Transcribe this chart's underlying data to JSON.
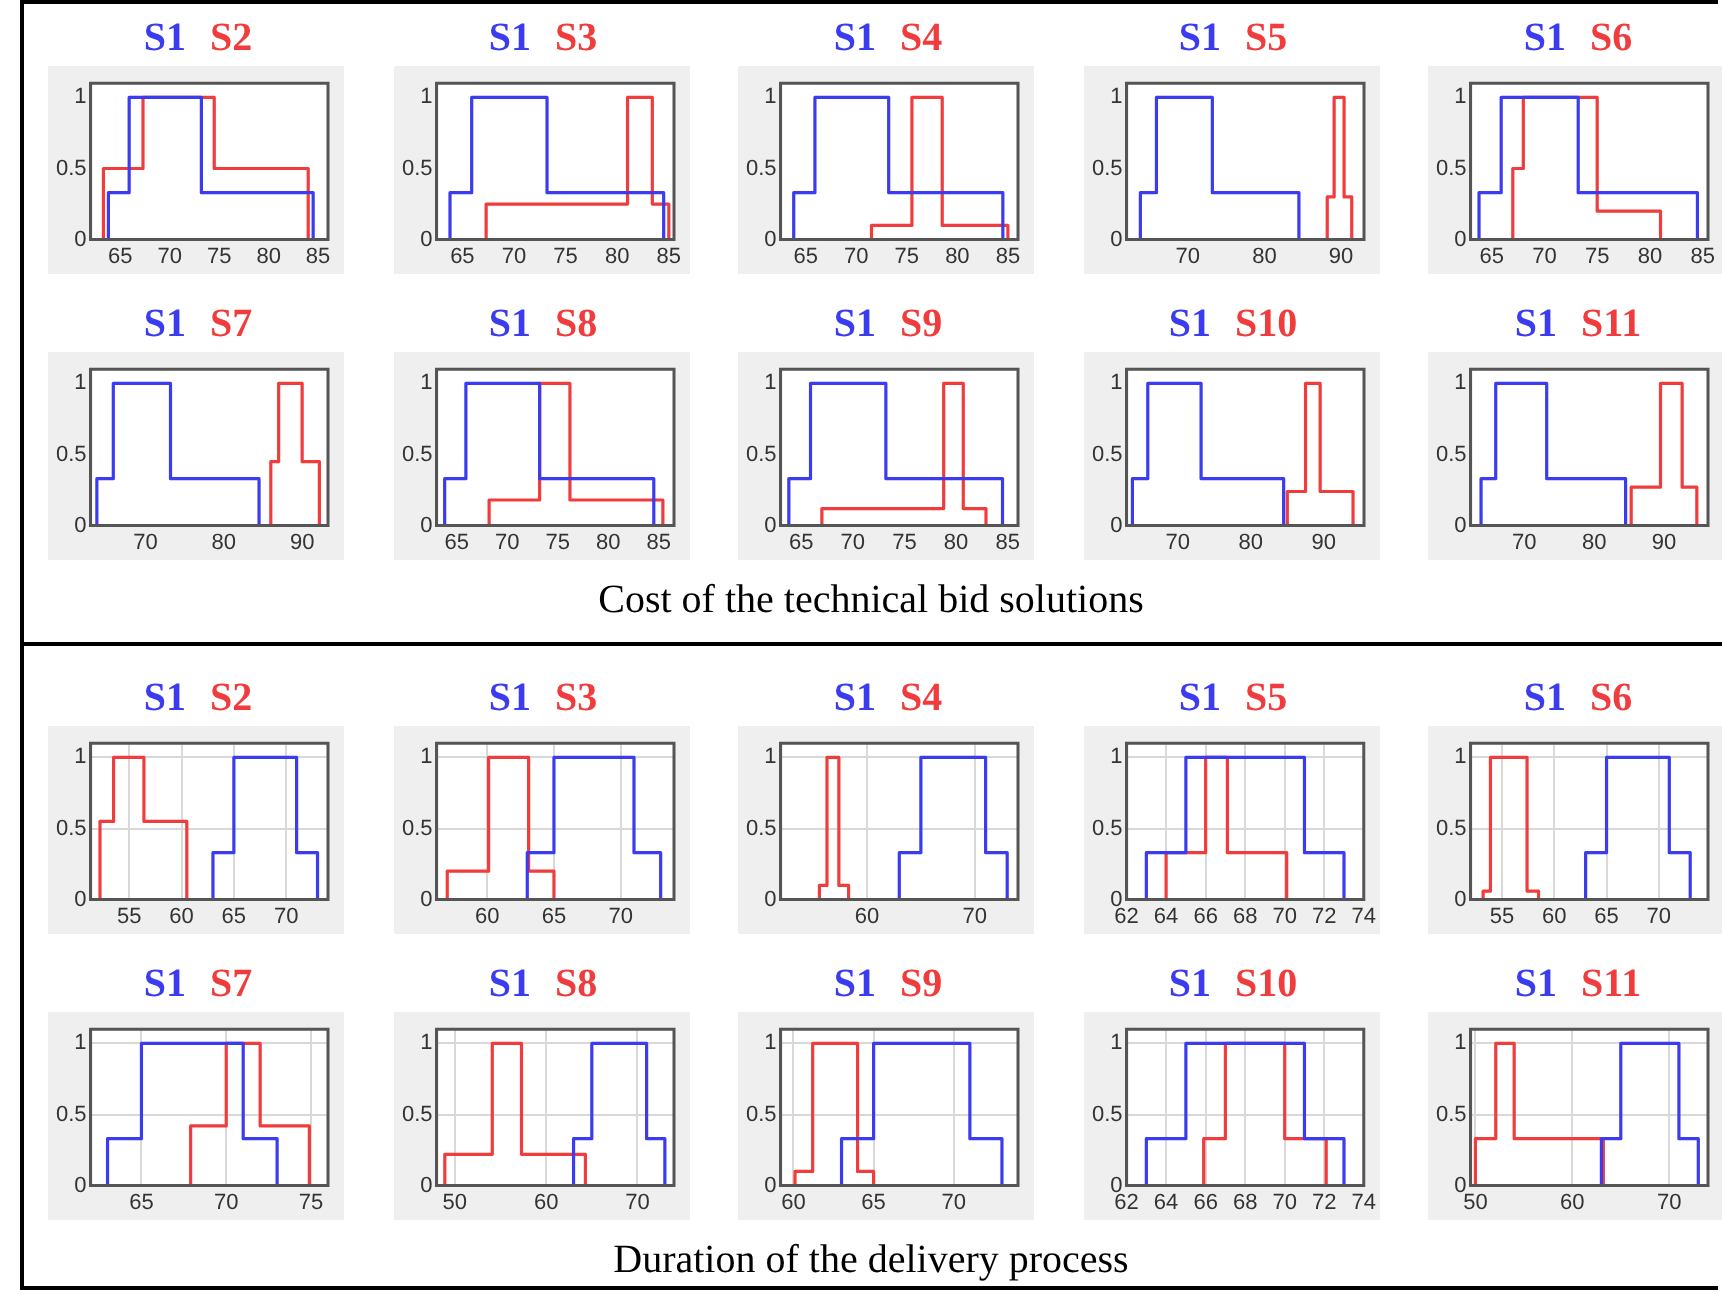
{
  "chart_data": [
    {
      "type": "line",
      "legend": "top",
      "grid": false,
      "xlim": [
        62,
        86
      ],
      "xticks": [
        65,
        70,
        75,
        80,
        85
      ],
      "ylim": [
        0,
        1.1
      ],
      "yticks": [
        0,
        0.5,
        1
      ],
      "series": [
        {
          "name": "S1",
          "color": "#3b3bf0",
          "x": [
            63.8,
            63.8,
            65.9,
            65.9,
            73.2,
            73.2,
            84.5,
            84.5
          ],
          "values": [
            0,
            0.33,
            0.33,
            1,
            1,
            0.33,
            0.33,
            0
          ]
        },
        {
          "name": "S2",
          "color": "#f03c3c",
          "x": [
            63.3,
            63.3,
            67.3,
            67.3,
            74.5,
            74.5,
            84,
            84
          ],
          "values": [
            0,
            0.5,
            0.5,
            1,
            1,
            0.5,
            0.5,
            0
          ]
        }
      ]
    },
    {
      "type": "line",
      "legend": "top",
      "grid": false,
      "xlim": [
        62.5,
        85.5
      ],
      "xticks": [
        65,
        70,
        75,
        80,
        85
      ],
      "ylim": [
        0,
        1.1
      ],
      "yticks": [
        0,
        0.5,
        1
      ],
      "series": [
        {
          "name": "S1",
          "color": "#3b3bf0",
          "x": [
            63.8,
            63.8,
            65.9,
            65.9,
            73.2,
            73.2,
            84.5,
            84.5
          ],
          "values": [
            0,
            0.33,
            0.33,
            1,
            1,
            0.33,
            0.33,
            0
          ]
        },
        {
          "name": "S3",
          "color": "#f03c3c",
          "x": [
            67.3,
            67.3,
            81,
            81,
            83.4,
            83.4,
            85,
            85
          ],
          "values": [
            0,
            0.25,
            0.25,
            1,
            1,
            0.25,
            0.25,
            0
          ]
        }
      ]
    },
    {
      "type": "line",
      "legend": "top",
      "grid": false,
      "xlim": [
        62.5,
        86
      ],
      "xticks": [
        65,
        70,
        75,
        80,
        85
      ],
      "ylim": [
        0,
        1.1
      ],
      "yticks": [
        0,
        0.5,
        1
      ],
      "series": [
        {
          "name": "S1",
          "color": "#3b3bf0",
          "x": [
            63.8,
            63.8,
            65.9,
            65.9,
            73.2,
            73.2,
            84.5,
            84.5
          ],
          "values": [
            0,
            0.33,
            0.33,
            1,
            1,
            0.33,
            0.33,
            0
          ]
        },
        {
          "name": "S4",
          "color": "#f03c3c",
          "x": [
            71.5,
            71.5,
            75.5,
            75.5,
            78.5,
            78.5,
            85,
            85
          ],
          "values": [
            0,
            0.1,
            0.1,
            1,
            1,
            0.1,
            0.1,
            0
          ]
        }
      ]
    },
    {
      "type": "line",
      "legend": "top",
      "grid": false,
      "xlim": [
        62,
        93
      ],
      "xticks": [
        70,
        80,
        90
      ],
      "ylim": [
        0,
        1.1
      ],
      "yticks": [
        0,
        0.5,
        1
      ],
      "series": [
        {
          "name": "S1",
          "color": "#3b3bf0",
          "x": [
            63.8,
            63.8,
            65.9,
            65.9,
            73.2,
            73.2,
            84.5,
            84.5
          ],
          "values": [
            0,
            0.33,
            0.33,
            1,
            1,
            0.33,
            0.33,
            0
          ]
        },
        {
          "name": "S5",
          "color": "#f03c3c",
          "x": [
            88.2,
            88.2,
            89.1,
            89.1,
            90.4,
            90.4,
            91.4,
            91.4
          ],
          "values": [
            0,
            0.3,
            0.3,
            1,
            1,
            0.3,
            0.3,
            0
          ]
        }
      ]
    },
    {
      "type": "line",
      "legend": "top",
      "grid": false,
      "xlim": [
        63,
        85.5
      ],
      "xticks": [
        65,
        70,
        75,
        80,
        85
      ],
      "ylim": [
        0,
        1.1
      ],
      "yticks": [
        0,
        0.5,
        1
      ],
      "series": [
        {
          "name": "S1",
          "color": "#3b3bf0",
          "x": [
            63.8,
            63.8,
            65.9,
            65.9,
            73.2,
            73.2,
            84.5,
            84.5
          ],
          "values": [
            0,
            0.33,
            0.33,
            1,
            1,
            0.33,
            0.33,
            0
          ]
        },
        {
          "name": "S6",
          "color": "#f03c3c",
          "x": [
            67,
            67,
            68,
            68,
            75,
            75,
            81,
            81
          ],
          "values": [
            0,
            0.5,
            0.5,
            1,
            1,
            0.2,
            0.2,
            0
          ]
        }
      ]
    },
    {
      "type": "line",
      "legend": "top",
      "grid": false,
      "xlim": [
        63,
        93.3
      ],
      "xticks": [
        70,
        80,
        90
      ],
      "ylim": [
        0,
        1.1
      ],
      "yticks": [
        0,
        0.5,
        1
      ],
      "annotations": [
        "Cost of the technical bid solutions"
      ],
      "series": [
        {
          "name": "S1",
          "color": "#3b3bf0",
          "x": [
            63.8,
            63.8,
            65.9,
            65.9,
            73.2,
            73.2,
            84.5,
            84.5
          ],
          "values": [
            0,
            0.33,
            0.33,
            1,
            1,
            0.33,
            0.33,
            0
          ]
        },
        {
          "name": "S7",
          "color": "#f03c3c",
          "x": [
            86,
            86,
            87,
            87,
            90,
            90,
            92.2,
            92.2
          ],
          "values": [
            0,
            0.45,
            0.45,
            1,
            1,
            0.45,
            0.45,
            0
          ]
        }
      ]
    },
    {
      "type": "line",
      "legend": "top",
      "grid": false,
      "xlim": [
        63,
        86.5
      ],
      "xticks": [
        65,
        70,
        75,
        80,
        85
      ],
      "ylim": [
        0,
        1.1
      ],
      "yticks": [
        0,
        0.5,
        1
      ],
      "series": [
        {
          "name": "S1",
          "color": "#3b3bf0",
          "x": [
            63.8,
            63.8,
            65.9,
            65.9,
            73.2,
            73.2,
            84.5,
            84.5
          ],
          "values": [
            0,
            0.33,
            0.33,
            1,
            1,
            0.33,
            0.33,
            0
          ]
        },
        {
          "name": "S8",
          "color": "#f03c3c",
          "x": [
            68.2,
            68.2,
            73.2,
            73.2,
            76.2,
            76.2,
            85.4,
            85.4
          ],
          "values": [
            0,
            0.18,
            0.18,
            1,
            1,
            0.18,
            0.18,
            0
          ]
        }
      ]
    },
    {
      "type": "line",
      "legend": "top",
      "grid": false,
      "xlim": [
        63,
        86
      ],
      "xticks": [
        65,
        70,
        75,
        80,
        85
      ],
      "ylim": [
        0,
        1.1
      ],
      "yticks": [
        0,
        0.5,
        1
      ],
      "series": [
        {
          "name": "S1",
          "color": "#3b3bf0",
          "x": [
            63.8,
            63.8,
            65.9,
            65.9,
            73.2,
            73.2,
            84.5,
            84.5
          ],
          "values": [
            0,
            0.33,
            0.33,
            1,
            1,
            0.33,
            0.33,
            0
          ]
        },
        {
          "name": "S9",
          "color": "#f03c3c",
          "x": [
            67,
            67,
            78.8,
            78.8,
            80.7,
            80.7,
            82.9,
            82.9
          ],
          "values": [
            0,
            0.12,
            0.12,
            1,
            1,
            0.12,
            0.12,
            0
          ]
        }
      ]
    },
    {
      "type": "line",
      "legend": "top",
      "grid": false,
      "xlim": [
        63,
        95.5
      ],
      "xticks": [
        70,
        80,
        90
      ],
      "ylim": [
        0,
        1.1
      ],
      "yticks": [
        0,
        0.5,
        1
      ],
      "series": [
        {
          "name": "S1",
          "color": "#3b3bf0",
          "x": [
            63.8,
            63.8,
            65.9,
            65.9,
            73.2,
            73.2,
            84.5,
            84.5
          ],
          "values": [
            0,
            0.33,
            0.33,
            1,
            1,
            0.33,
            0.33,
            0
          ]
        },
        {
          "name": "S10",
          "color": "#f03c3c",
          "x": [
            85,
            85,
            87.5,
            87.5,
            89.5,
            89.5,
            94,
            94
          ],
          "values": [
            0,
            0.24,
            0.24,
            1,
            1,
            0.24,
            0.24,
            0
          ]
        }
      ]
    },
    {
      "type": "line",
      "legend": "top",
      "grid": false,
      "xlim": [
        62.3,
        96.3
      ],
      "xticks": [
        70,
        80,
        90
      ],
      "ylim": [
        0,
        1.1
      ],
      "yticks": [
        0,
        0.5,
        1
      ],
      "series": [
        {
          "name": "S1",
          "color": "#3b3bf0",
          "x": [
            63.8,
            63.8,
            65.9,
            65.9,
            73.2,
            73.2,
            84.5,
            84.5
          ],
          "values": [
            0,
            0.33,
            0.33,
            1,
            1,
            0.33,
            0.33,
            0
          ]
        },
        {
          "name": "S11",
          "color": "#f03c3c",
          "x": [
            85.3,
            85.3,
            89.5,
            89.5,
            92.6,
            92.6,
            94.7,
            94.7
          ],
          "values": [
            0,
            0.27,
            0.27,
            1,
            1,
            0.27,
            0.27,
            0
          ]
        }
      ]
    },
    {
      "type": "line",
      "legend": "top",
      "grid": true,
      "xlim": [
        51.3,
        74
      ],
      "xticks": [
        55,
        60,
        65,
        70
      ],
      "ylim": [
        0,
        1.1
      ],
      "yticks": [
        0,
        0.5,
        1
      ],
      "series": [
        {
          "name": "S1",
          "color": "#3b3bf0",
          "x": [
            63,
            63,
            65,
            65,
            71,
            71,
            73,
            73
          ],
          "values": [
            0,
            0.33,
            0.33,
            1,
            1,
            0.33,
            0.33,
            0
          ]
        },
        {
          "name": "S2",
          "color": "#f03c3c",
          "x": [
            52.2,
            52.2,
            53.5,
            53.5,
            56.4,
            56.4,
            60.5,
            60.5
          ],
          "values": [
            0,
            0.55,
            0.55,
            1,
            1,
            0.55,
            0.55,
            0
          ]
        }
      ]
    },
    {
      "type": "line",
      "legend": "top",
      "grid": true,
      "xlim": [
        56.2,
        74
      ],
      "xticks": [
        60,
        65,
        70
      ],
      "ylim": [
        0,
        1.1
      ],
      "yticks": [
        0,
        0.5,
        1
      ],
      "series": [
        {
          "name": "S1",
          "color": "#3b3bf0",
          "x": [
            63,
            63,
            65,
            65,
            71,
            71,
            73,
            73
          ],
          "values": [
            0,
            0.33,
            0.33,
            1,
            1,
            0.33,
            0.33,
            0
          ]
        },
        {
          "name": "S3",
          "color": "#f03c3c",
          "x": [
            57,
            57,
            60.1,
            60.1,
            63.1,
            63.1,
            65,
            65
          ],
          "values": [
            0,
            0.2,
            0.2,
            1,
            1,
            0.2,
            0.2,
            0
          ]
        }
      ]
    },
    {
      "type": "line",
      "legend": "top",
      "grid": true,
      "xlim": [
        52,
        74
      ],
      "xticks": [
        60,
        70
      ],
      "ylim": [
        0,
        1.1
      ],
      "yticks": [
        0,
        0.5,
        1
      ],
      "series": [
        {
          "name": "S1",
          "color": "#3b3bf0",
          "x": [
            63,
            63,
            65,
            65,
            71,
            71,
            73,
            73
          ],
          "values": [
            0,
            0.33,
            0.33,
            1,
            1,
            0.33,
            0.33,
            0
          ]
        },
        {
          "name": "S4",
          "color": "#f03c3c",
          "x": [
            55.6,
            55.6,
            56.3,
            56.3,
            57.4,
            57.4,
            58.3,
            58.3
          ],
          "values": [
            0,
            0.1,
            0.1,
            1,
            1,
            0.1,
            0.1,
            0
          ]
        }
      ]
    },
    {
      "type": "line",
      "legend": "top",
      "grid": true,
      "xlim": [
        62,
        74
      ],
      "xticks": [
        62,
        64,
        66,
        68,
        70,
        72,
        74
      ],
      "ylim": [
        0,
        1.1
      ],
      "yticks": [
        0,
        0.5,
        1
      ],
      "series": [
        {
          "name": "S1",
          "color": "#3b3bf0",
          "x": [
            63,
            63,
            65,
            65,
            71,
            71,
            73,
            73
          ],
          "values": [
            0,
            0.33,
            0.33,
            1,
            1,
            0.33,
            0.33,
            0
          ]
        },
        {
          "name": "S5",
          "color": "#f03c3c",
          "x": [
            64,
            64,
            66,
            66,
            67.1,
            67.1,
            70.1,
            70.1
          ],
          "values": [
            0,
            0.33,
            0.33,
            1,
            1,
            0.33,
            0.33,
            0
          ]
        }
      ]
    },
    {
      "type": "line",
      "legend": "top",
      "grid": true,
      "xlim": [
        52,
        74.7
      ],
      "xticks": [
        55,
        60,
        65,
        70
      ],
      "ylim": [
        0,
        1.1
      ],
      "yticks": [
        0,
        0.5,
        1
      ],
      "series": [
        {
          "name": "S1",
          "color": "#3b3bf0",
          "x": [
            63,
            63,
            65,
            65,
            71,
            71,
            73,
            73
          ],
          "values": [
            0,
            0.33,
            0.33,
            1,
            1,
            0.33,
            0.33,
            0
          ]
        },
        {
          "name": "S6",
          "color": "#f03c3c",
          "x": [
            53.2,
            53.2,
            53.9,
            53.9,
            57.4,
            57.4,
            58.5,
            58.5
          ],
          "values": [
            0,
            0.06,
            0.06,
            1,
            1,
            0.06,
            0.06,
            0
          ]
        }
      ]
    },
    {
      "type": "line",
      "legend": "top",
      "grid": true,
      "xlim": [
        62,
        76
      ],
      "xticks": [
        65,
        70,
        75
      ],
      "ylim": [
        0,
        1.1
      ],
      "yticks": [
        0,
        0.5,
        1
      ],
      "annotations": [
        "Duration of the delivery process"
      ],
      "series": [
        {
          "name": "S1",
          "color": "#3b3bf0",
          "x": [
            63,
            63,
            65,
            65,
            71,
            71,
            73,
            73
          ],
          "values": [
            0,
            0.33,
            0.33,
            1,
            1,
            0.33,
            0.33,
            0
          ]
        },
        {
          "name": "S7",
          "color": "#f03c3c",
          "x": [
            67.9,
            67.9,
            70,
            70,
            72,
            72,
            74.9,
            74.9
          ],
          "values": [
            0,
            0.42,
            0.42,
            1,
            1,
            0.42,
            0.42,
            0
          ]
        }
      ]
    },
    {
      "type": "line",
      "legend": "top",
      "grid": true,
      "xlim": [
        48,
        74
      ],
      "xticks": [
        50,
        60,
        70
      ],
      "ylim": [
        0,
        1.1
      ],
      "yticks": [
        0,
        0.5,
        1
      ],
      "series": [
        {
          "name": "S1",
          "color": "#3b3bf0",
          "x": [
            63,
            63,
            65,
            65,
            71,
            71,
            73,
            73
          ],
          "values": [
            0,
            0.33,
            0.33,
            1,
            1,
            0.33,
            0.33,
            0
          ]
        },
        {
          "name": "S8",
          "color": "#f03c3c",
          "x": [
            48.9,
            48.9,
            54.1,
            54.1,
            57.3,
            57.3,
            64.3,
            64.3
          ],
          "values": [
            0,
            0.22,
            0.22,
            1,
            1,
            0.22,
            0.22,
            0
          ]
        }
      ]
    },
    {
      "type": "line",
      "legend": "top",
      "grid": true,
      "xlim": [
        59.2,
        74
      ],
      "xticks": [
        60,
        65,
        70
      ],
      "ylim": [
        0,
        1.1
      ],
      "yticks": [
        0,
        0.5,
        1
      ],
      "series": [
        {
          "name": "S1",
          "color": "#3b3bf0",
          "x": [
            63,
            63,
            65,
            65,
            71,
            71,
            73,
            73
          ],
          "values": [
            0,
            0.33,
            0.33,
            1,
            1,
            0.33,
            0.33,
            0
          ]
        },
        {
          "name": "S9",
          "color": "#f03c3c",
          "x": [
            60.1,
            60.1,
            61.2,
            61.2,
            64,
            64,
            65,
            65
          ],
          "values": [
            0,
            0.1,
            0.1,
            1,
            1,
            0.1,
            0.1,
            0
          ]
        }
      ]
    },
    {
      "type": "line",
      "legend": "top",
      "grid": true,
      "xlim": [
        62,
        74
      ],
      "xticks": [
        62,
        64,
        66,
        68,
        70,
        72,
        74
      ],
      "ylim": [
        0,
        1.1
      ],
      "yticks": [
        0,
        0.5,
        1
      ],
      "series": [
        {
          "name": "S1",
          "color": "#3b3bf0",
          "x": [
            63,
            63,
            65,
            65,
            71,
            71,
            73,
            73
          ],
          "values": [
            0,
            0.33,
            0.33,
            1,
            1,
            0.33,
            0.33,
            0
          ]
        },
        {
          "name": "S10",
          "color": "#f03c3c",
          "x": [
            65.9,
            65.9,
            67,
            67,
            70,
            70,
            72.1,
            72.1
          ],
          "values": [
            0,
            0.33,
            0.33,
            1,
            1,
            0.33,
            0.33,
            0
          ]
        }
      ]
    },
    {
      "type": "line",
      "legend": "top",
      "grid": true,
      "xlim": [
        49.5,
        74
      ],
      "xticks": [
        50,
        60,
        70
      ],
      "ylim": [
        0,
        1.1
      ],
      "yticks": [
        0,
        0.5,
        1
      ],
      "series": [
        {
          "name": "S1",
          "color": "#3b3bf0",
          "x": [
            63,
            63,
            65,
            65,
            71,
            71,
            73,
            73
          ],
          "values": [
            0,
            0.33,
            0.33,
            1,
            1,
            0.33,
            0.33,
            0
          ]
        },
        {
          "name": "S11",
          "color": "#f03c3c",
          "x": [
            50,
            50,
            52.1,
            52.1,
            54,
            54,
            63.2,
            63.2
          ],
          "values": [
            0,
            0.33,
            0.33,
            1,
            1,
            0.33,
            0.33,
            0
          ]
        }
      ]
    }
  ]
}
